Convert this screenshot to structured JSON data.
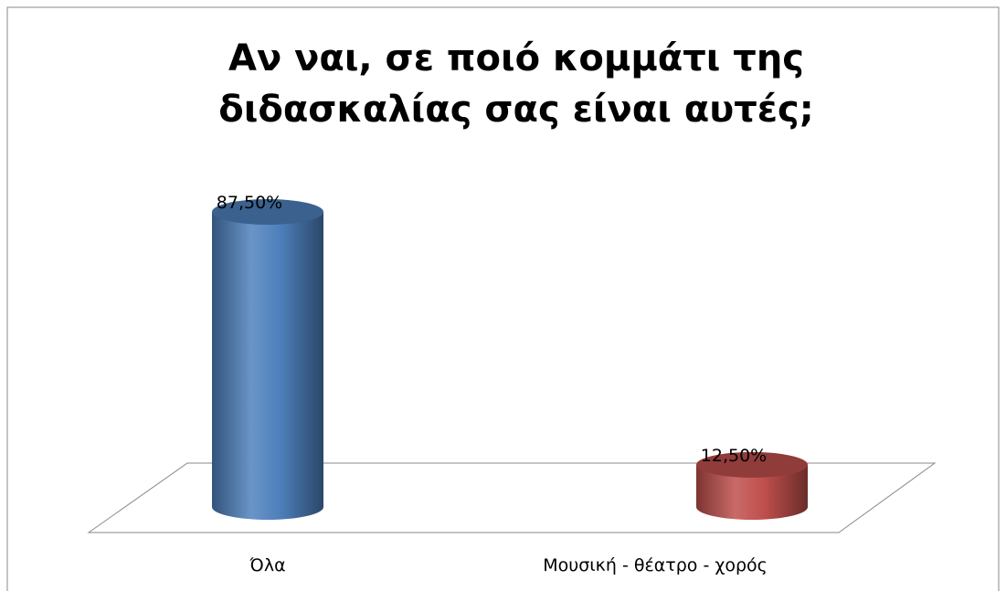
{
  "chart_data": {
    "type": "bar3d",
    "title": "Αν ναι, σε ποιό κομμάτι της διδασκαλίας σας είναι αυτές;",
    "categories": [
      "Όλα",
      "Μουσική - θέατρο - χορός"
    ],
    "values": [
      87.5,
      12.5
    ],
    "value_labels": [
      "87,50%",
      "12,50%"
    ],
    "colors": [
      "#4f81bd",
      "#c0504d"
    ]
  }
}
